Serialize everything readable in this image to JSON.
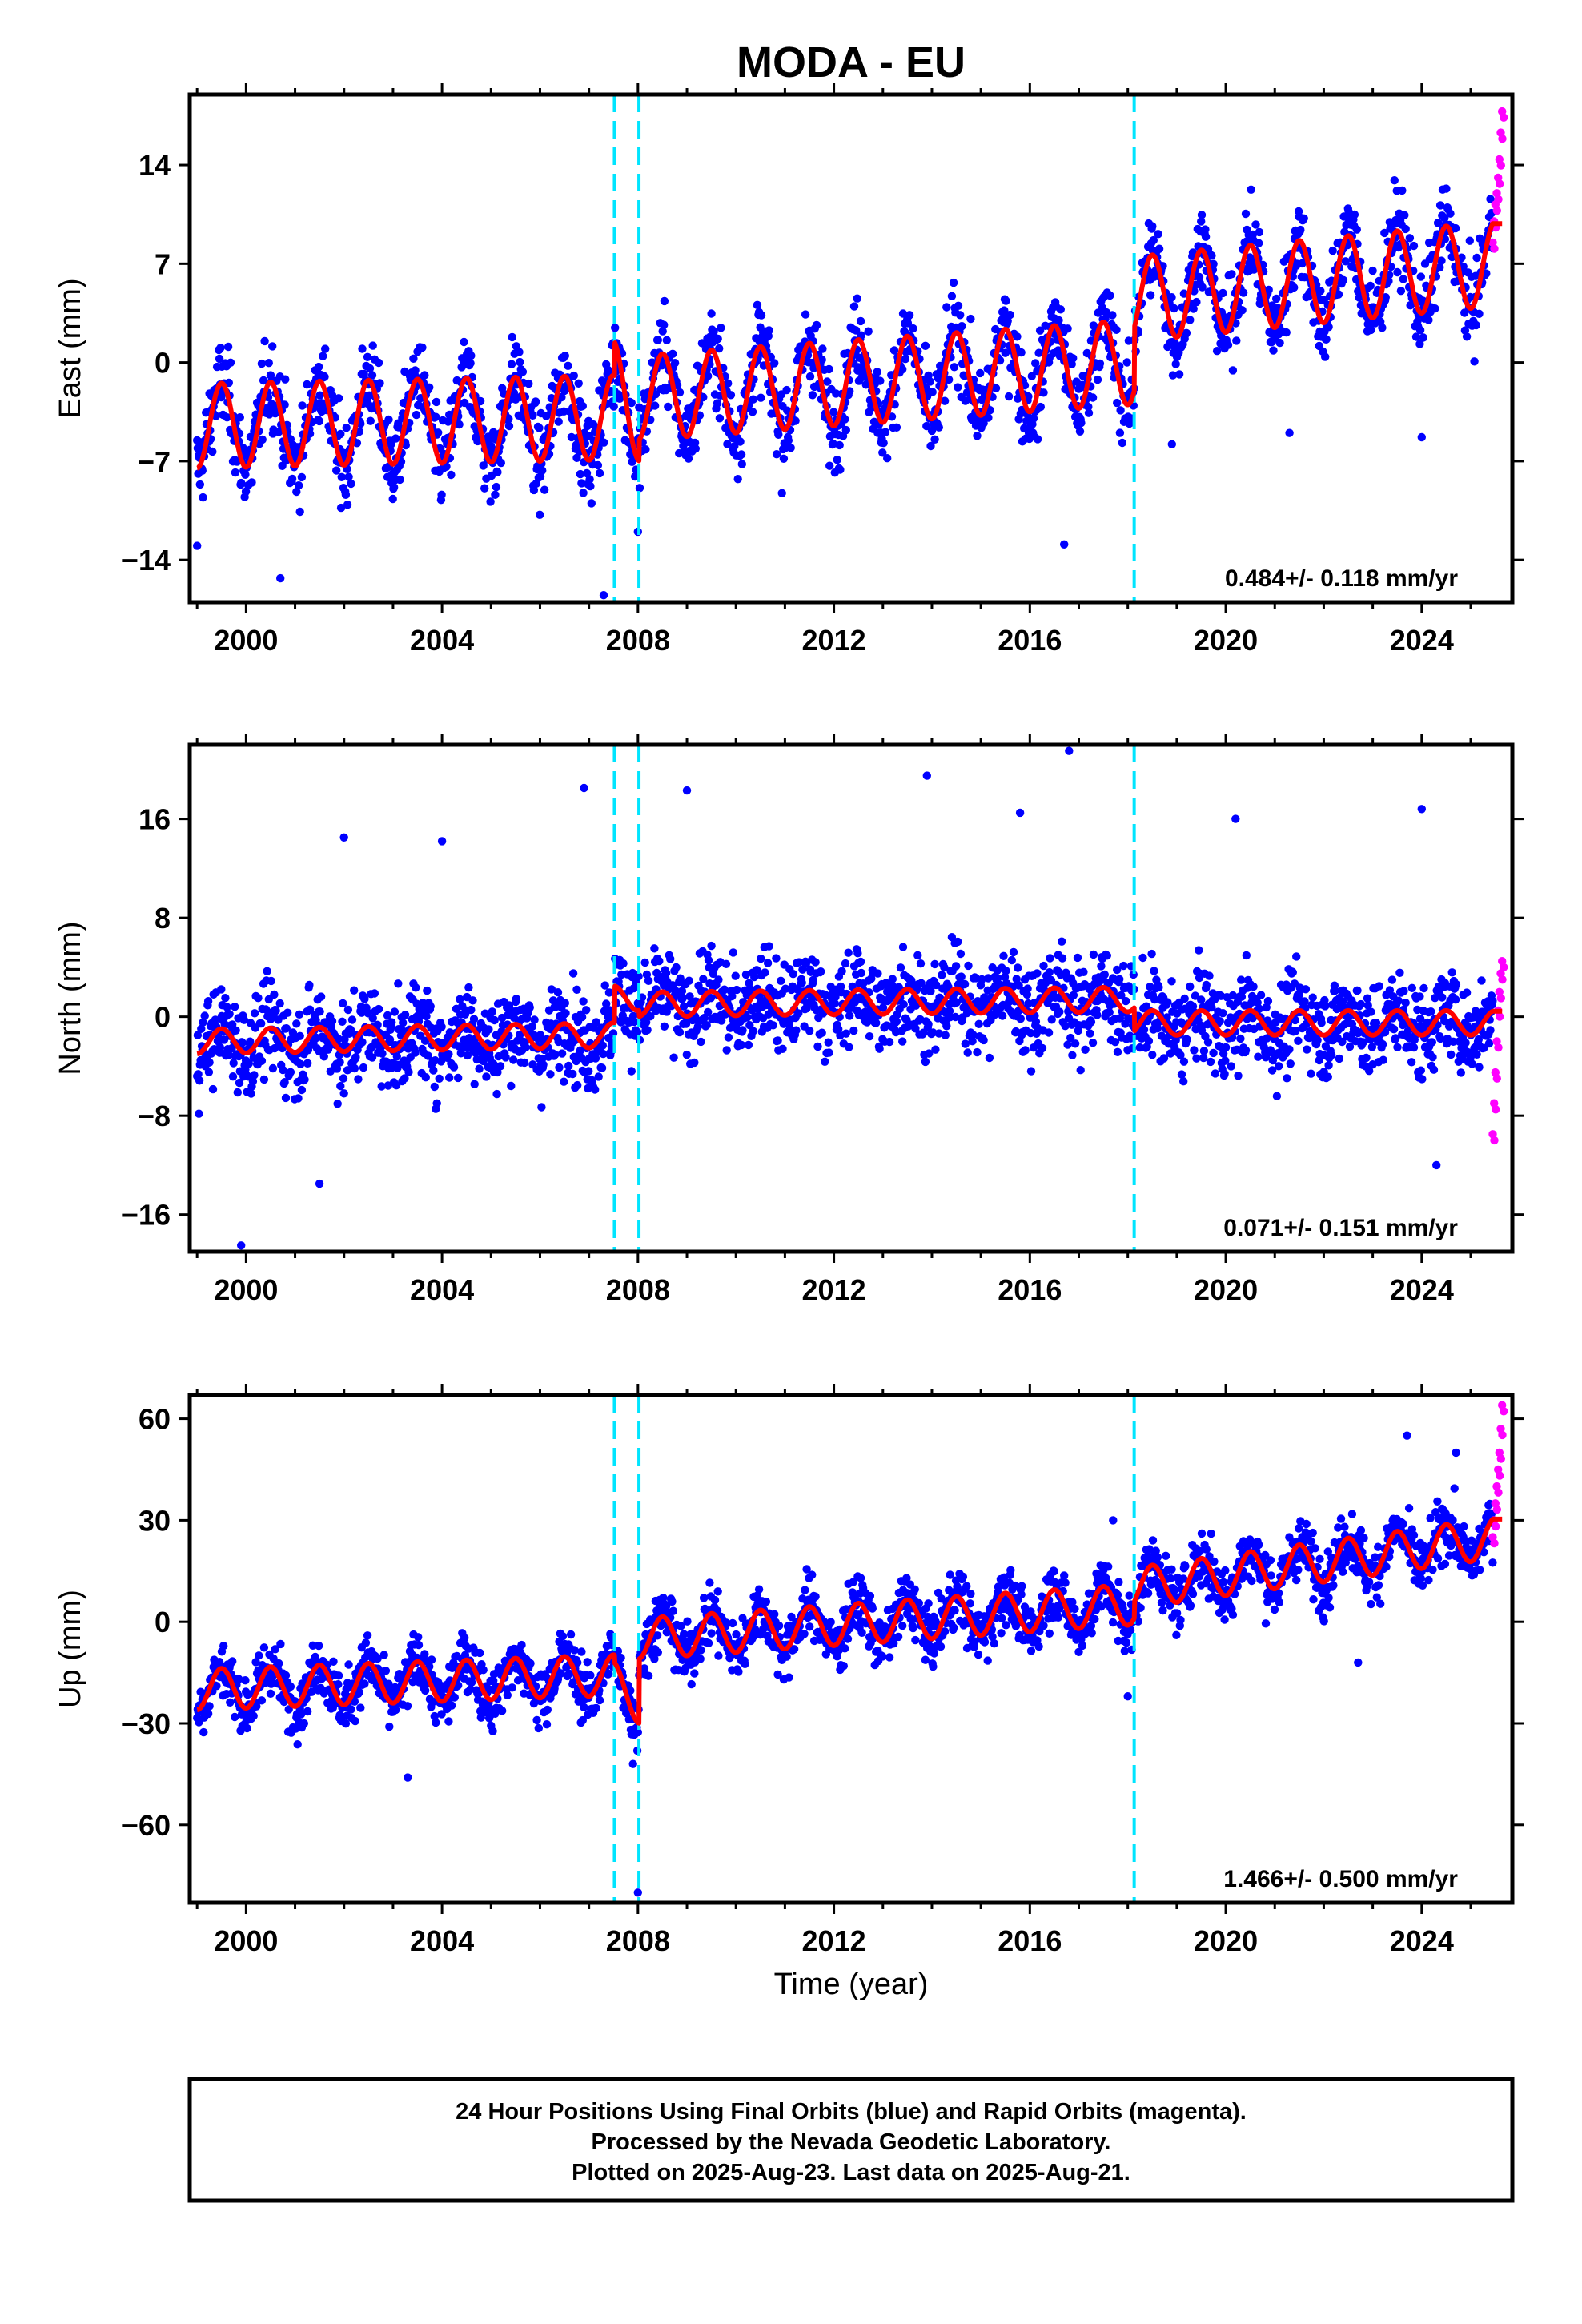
{
  "title": "MODA - EU",
  "xlabel": "Time (year)",
  "footer": [
    "24 Hour Positions Using Final Orbits (blue) and Rapid Orbits (magenta).",
    "Processed by the Nevada Geodetic Laboratory.",
    "Plotted on 2025-Aug-23. Last data on 2025-Aug-21."
  ],
  "colors": {
    "final_orbits": "#0000ff",
    "rapid_orbits": "#ff00ff",
    "model_fit": "#ff0000",
    "offset_lines": "#00e5ff"
  },
  "chart_data": [
    {
      "type": "scatter",
      "component": "east",
      "ylabel": "East (mm)",
      "xlim": [
        1998.85,
        2025.85
      ],
      "ylim": [
        -17,
        19
      ],
      "x_ticks": [
        2000,
        2004,
        2008,
        2012,
        2016,
        2020,
        2024
      ],
      "y_ticks": [
        -14,
        -7,
        0,
        7,
        14
      ],
      "rate_label": "0.484+/- 0.118 mm/yr",
      "offsets": [
        2007.52,
        2008.02,
        2018.13
      ],
      "series": [
        {
          "name": "Final Orbits",
          "color": "#0000ff",
          "x_range": [
            1999.0,
            2025.45
          ],
          "model": {
            "segments": [
              {
                "from": 1999.0,
                "to": 2007.52,
                "start": -4.5,
                "rate": 0.07,
                "amp": 3.0
              },
              {
                "from": 2007.52,
                "to": 2008.02,
                "start": -1.5,
                "rate": -5.0,
                "amp": 3.0
              },
              {
                "from": 2008.02,
                "to": 2018.13,
                "start": -2.5,
                "rate": 0.25,
                "amp": 3.0
              },
              {
                "from": 2018.13,
                "to": 2025.45,
                "start": 4.5,
                "rate": 0.34,
                "amp": 3.0
              }
            ]
          },
          "scatter_sigma": 2.1,
          "outliers": [
            [
              1999.0,
              -13.0
            ],
            [
              2000.7,
              -15.3
            ],
            [
              2007.3,
              -16.5
            ],
            [
              2008.0,
              -12.0
            ],
            [
              2016.7,
              -12.9
            ],
            [
              2021.3,
              -5.0
            ],
            [
              2024.0,
              -5.3
            ],
            [
              2018.9,
              -5.8
            ]
          ]
        },
        {
          "name": "Rapid Orbits",
          "color": "#ff00ff",
          "x_range": [
            2025.45,
            2025.64
          ],
          "values": [
            8.5,
            10.0,
            11.2,
            12.0,
            13.1,
            14.4,
            16.3,
            17.8
          ]
        }
      ],
      "model_line": {
        "color": "#ff0000",
        "x_range": [
          1999.0,
          2025.64
        ]
      }
    },
    {
      "type": "scatter",
      "component": "north",
      "ylabel": "North (mm)",
      "xlim": [
        1998.85,
        2025.85
      ],
      "ylim": [
        -19,
        22
      ],
      "x_ticks": [
        2000,
        2004,
        2008,
        2012,
        2016,
        2020,
        2024
      ],
      "y_ticks": [
        -16,
        -8,
        0,
        8,
        16
      ],
      "rate_label": "0.071+/- 0.151 mm/yr",
      "offsets": [
        2007.52,
        2008.02,
        2018.13
      ],
      "series": [
        {
          "name": "Final Orbits",
          "color": "#0000ff",
          "x_range": [
            1999.0,
            2025.45
          ],
          "model": {
            "segments": [
              {
                "from": 1999.0,
                "to": 2007.52,
                "start": -2.0,
                "rate": 0.06,
                "amp": 1.0
              },
              {
                "from": 2007.52,
                "to": 2008.02,
                "start": 1.5,
                "rate": 0.0,
                "amp": 1.0
              },
              {
                "from": 2008.02,
                "to": 2018.13,
                "start": 1.0,
                "rate": 0.04,
                "amp": 1.0
              },
              {
                "from": 2018.13,
                "to": 2025.45,
                "start": -0.5,
                "rate": 0.0,
                "amp": 1.0
              }
            ]
          },
          "scatter_sigma": 2.6,
          "outliers": [
            [
              1999.9,
              -18.5
            ],
            [
              2006.9,
              18.5
            ],
            [
              2009.0,
              18.3
            ],
            [
              2013.9,
              19.5
            ],
            [
              2016.8,
              21.5
            ],
            [
              2015.8,
              16.5
            ],
            [
              2020.2,
              16.0
            ],
            [
              2024.0,
              16.8
            ],
            [
              2001.5,
              -13.5
            ],
            [
              2024.3,
              -12.0
            ],
            [
              2002.0,
              14.5
            ],
            [
              2004.0,
              14.2
            ]
          ]
        },
        {
          "name": "Rapid Orbits",
          "color": "#ff00ff",
          "x_range": [
            2025.45,
            2025.64
          ],
          "values": [
            -9.5,
            -7.0,
            -4.5,
            -2.0,
            0.5,
            2.0,
            3.5,
            4.5
          ]
        }
      ],
      "model_line": {
        "color": "#ff0000",
        "x_range": [
          1999.0,
          2025.64
        ]
      }
    },
    {
      "type": "scatter",
      "component": "up",
      "ylabel": "Up (mm)",
      "xlim": [
        1998.85,
        2025.85
      ],
      "ylim": [
        -83,
        67
      ],
      "x_ticks": [
        2000,
        2004,
        2008,
        2012,
        2016,
        2020,
        2024
      ],
      "y_ticks": [
        -60,
        -30,
        0,
        30,
        60
      ],
      "rate_label": "1.466+/- 0.500 mm/yr",
      "offsets": [
        2007.52,
        2008.02,
        2018.13
      ],
      "series": [
        {
          "name": "Final Orbits",
          "color": "#0000ff",
          "x_range": [
            1999.0,
            2025.45
          ],
          "model": {
            "segments": [
              {
                "from": 1999.0,
                "to": 2007.52,
                "start": -20.0,
                "rate": 0.5,
                "amp": 6.0
              },
              {
                "from": 2007.52,
                "to": 2008.02,
                "start": -18.0,
                "rate": -12.0,
                "amp": 6.0
              },
              {
                "from": 2008.02,
                "to": 2018.13,
                "start": -5.0,
                "rate": 1.0,
                "amp": 6.0
              },
              {
                "from": 2018.13,
                "to": 2025.45,
                "start": 10.0,
                "rate": 2.0,
                "amp": 6.0
              }
            ]
          },
          "scatter_sigma": 6.0,
          "outliers": [
            [
              2008.0,
              -80.0
            ],
            [
              2003.3,
              -46.0
            ],
            [
              2017.7,
              30.0
            ],
            [
              2024.7,
              50.0
            ],
            [
              2023.7,
              55.0
            ],
            [
              2022.7,
              -12.0
            ],
            [
              2018.0,
              -22.0
            ],
            [
              2007.9,
              -42.0
            ]
          ]
        },
        {
          "name": "Rapid Orbits",
          "color": "#ff00ff",
          "x_range": [
            2025.45,
            2025.64
          ],
          "values": [
            25.0,
            30.0,
            35.0,
            40.0,
            45.0,
            50.0,
            57.0,
            64.0
          ]
        }
      ],
      "model_line": {
        "color": "#ff0000",
        "x_range": [
          1999.0,
          2025.64
        ]
      }
    }
  ]
}
